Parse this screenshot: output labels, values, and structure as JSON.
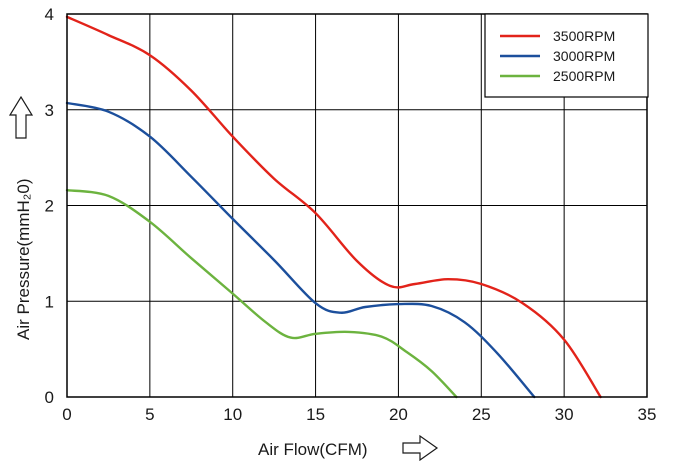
{
  "chart_data": {
    "type": "line",
    "xlabel": "Air Flow(CFM)",
    "ylabel": "Air Pressure(mmH₂0)",
    "xlim": [
      0,
      35
    ],
    "ylim": [
      0,
      4
    ],
    "xticks": [
      "0",
      "5",
      "10",
      "15",
      "20",
      "25",
      "30",
      "35"
    ],
    "yticks": [
      "0",
      "1",
      "2",
      "3",
      "4"
    ],
    "grid": true,
    "legend_position": "top-right",
    "series": [
      {
        "name": "3500RPM",
        "color": "#e2231a",
        "x": [
          0,
          2.5,
          5,
          7.5,
          10,
          12.5,
          15,
          17.5,
          19.5,
          21,
          23,
          25,
          27.5,
          30,
          32.2
        ],
        "y": [
          3.97,
          3.78,
          3.57,
          3.2,
          2.72,
          2.28,
          1.92,
          1.42,
          1.16,
          1.18,
          1.23,
          1.18,
          0.98,
          0.6,
          0
        ]
      },
      {
        "name": "3000RPM",
        "color": "#1c4f9c",
        "x": [
          0,
          2.5,
          5,
          7.5,
          10,
          12.5,
          15,
          16.5,
          18,
          20,
          22,
          24,
          26,
          28.2
        ],
        "y": [
          3.07,
          2.98,
          2.72,
          2.3,
          1.86,
          1.43,
          0.98,
          0.88,
          0.94,
          0.97,
          0.95,
          0.78,
          0.45,
          0
        ]
      },
      {
        "name": "2500RPM",
        "color": "#6cb33f",
        "x": [
          0,
          2.5,
          5,
          7.5,
          10,
          12,
          13.5,
          15,
          17,
          19,
          20.5,
          22,
          23.5
        ],
        "y": [
          2.16,
          2.1,
          1.83,
          1.45,
          1.08,
          0.78,
          0.62,
          0.66,
          0.68,
          0.63,
          0.47,
          0.27,
          0
        ]
      }
    ]
  }
}
